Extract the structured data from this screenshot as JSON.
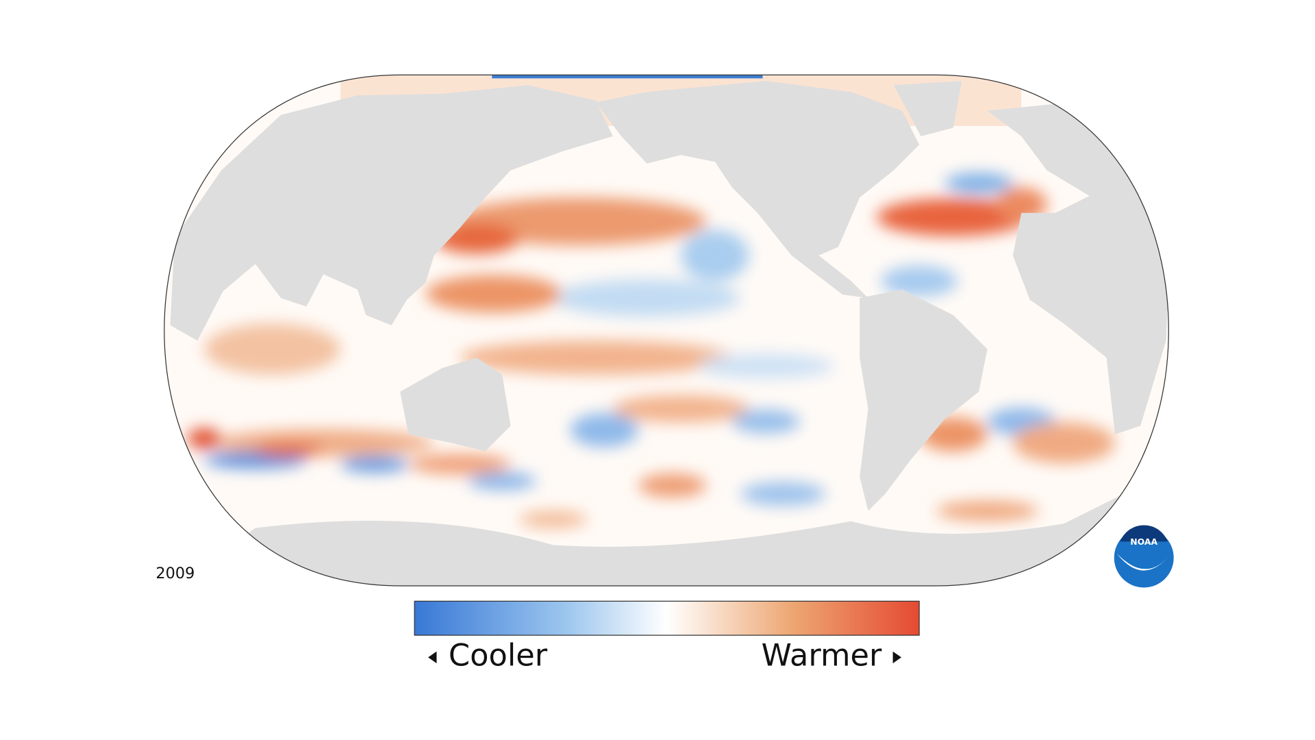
{
  "year": "2009",
  "legend": {
    "low_label": "Cooler",
    "high_label": "Warmer"
  },
  "logo": "NOAA"
}
